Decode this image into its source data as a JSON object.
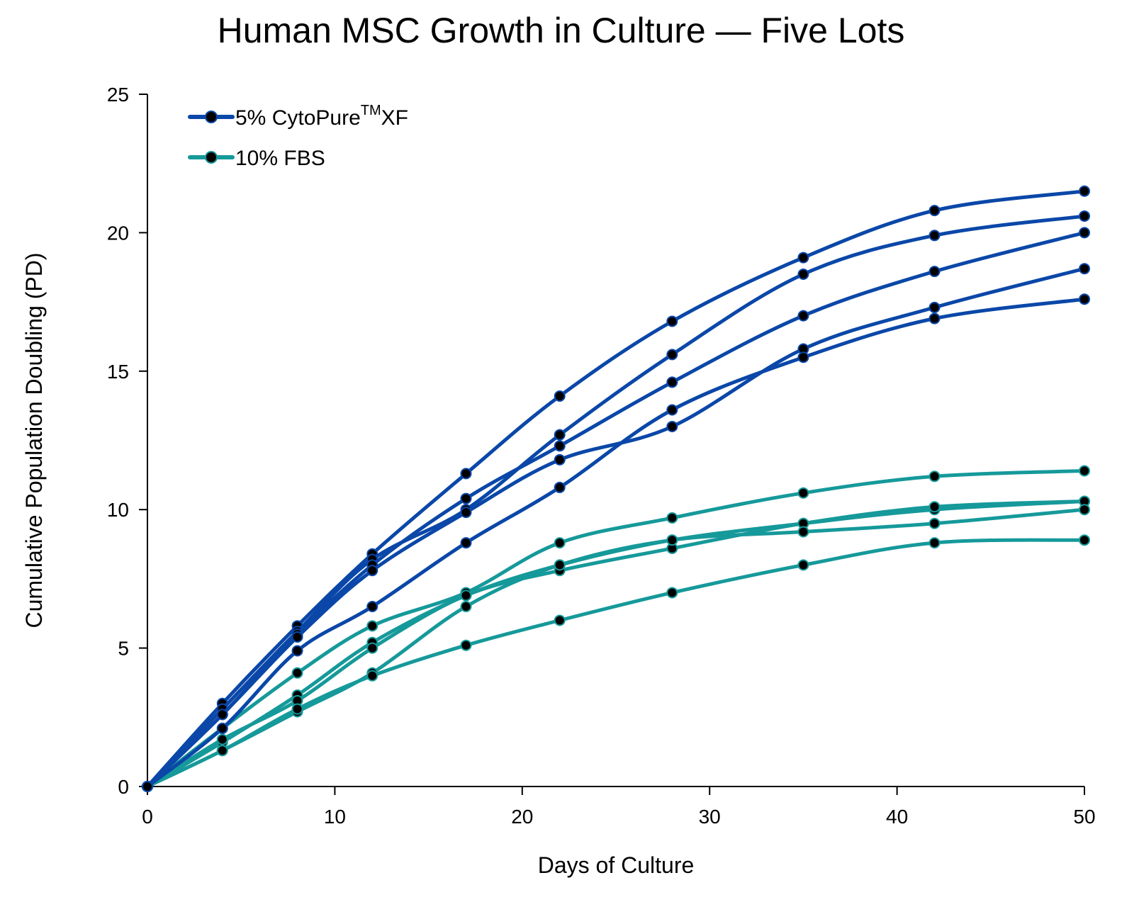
{
  "chart_data": {
    "type": "line",
    "title": "Human MSC Growth in Culture — Five Lots",
    "xlabel": "Days of Culture",
    "ylabel": "Cumulative Population Doubling (PD)",
    "xlim": [
      0,
      50
    ],
    "ylim": [
      0,
      25
    ],
    "xticks": [
      0,
      10,
      20,
      30,
      40,
      50
    ],
    "yticks": [
      0,
      5,
      10,
      15,
      20,
      25
    ],
    "grid": false,
    "legend_position": "top-left",
    "x": [
      0,
      4,
      8,
      12,
      17,
      22,
      28,
      35,
      42,
      50
    ],
    "legend": [
      {
        "group": "xf",
        "label_main": "5% CytoPure",
        "label_sup": "TM",
        "label_tail": "XF",
        "color": "#0a47a8"
      },
      {
        "group": "fbs",
        "label_main": "10% FBS",
        "label_sup": "",
        "label_tail": "",
        "color": "#16999a"
      }
    ],
    "series": [
      {
        "group": "xf",
        "values": [
          0,
          3.0,
          5.8,
          8.4,
          11.3,
          14.1,
          16.8,
          19.1,
          20.8,
          21.5
        ]
      },
      {
        "group": "xf",
        "values": [
          0,
          2.8,
          5.6,
          8.2,
          10.0,
          12.7,
          15.6,
          18.5,
          19.9,
          20.6
        ]
      },
      {
        "group": "xf",
        "values": [
          0,
          2.6,
          5.5,
          8.0,
          10.4,
          12.3,
          14.6,
          17.0,
          18.6,
          20.0
        ]
      },
      {
        "group": "xf",
        "values": [
          0,
          2.6,
          5.4,
          7.8,
          9.9,
          11.8,
          13.0,
          15.8,
          17.3,
          18.7
        ]
      },
      {
        "group": "xf",
        "values": [
          0,
          2.1,
          4.9,
          6.5,
          8.8,
          10.8,
          13.6,
          15.5,
          16.9,
          17.6
        ]
      },
      {
        "group": "fbs",
        "values": [
          0,
          2.1,
          4.1,
          5.8,
          7.0,
          8.8,
          9.7,
          10.6,
          11.2,
          11.4
        ]
      },
      {
        "group": "fbs",
        "values": [
          0,
          1.6,
          3.3,
          5.2,
          6.9,
          8.0,
          8.9,
          9.5,
          10.0,
          10.3
        ]
      },
      {
        "group": "fbs",
        "values": [
          0,
          1.7,
          3.1,
          5.0,
          6.9,
          7.8,
          8.6,
          9.5,
          10.1,
          10.3
        ]
      },
      {
        "group": "fbs",
        "values": [
          0,
          1.3,
          2.7,
          4.1,
          6.5,
          8.0,
          8.9,
          9.2,
          9.5,
          10.0
        ]
      },
      {
        "group": "fbs",
        "values": [
          0,
          1.3,
          2.8,
          4.0,
          5.1,
          6.0,
          7.0,
          8.0,
          8.8,
          8.9
        ]
      }
    ]
  }
}
